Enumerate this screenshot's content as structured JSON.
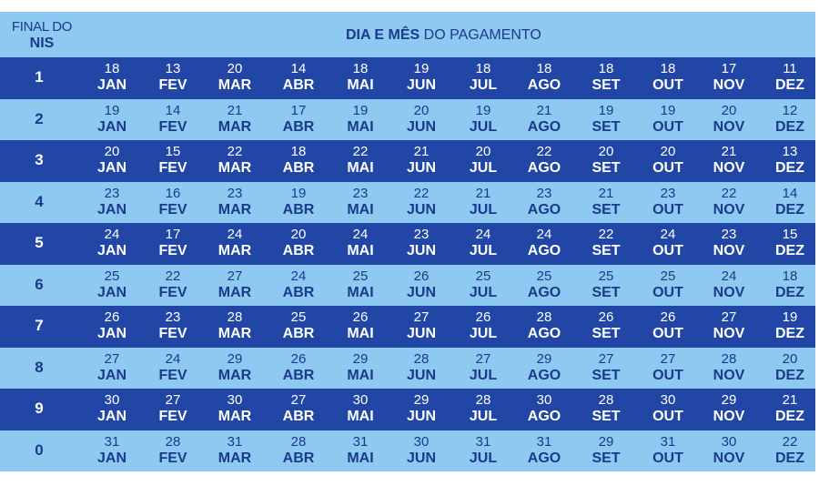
{
  "header": {
    "nis_line1": "FINAL DO",
    "nis_line2": "NIS",
    "title_bold": "DIA E MÊS",
    "title_rest": " DO PAGAMENTO"
  },
  "colors": {
    "dark_row": "#2146a5",
    "light_row": "#8dc9f1",
    "dark_text": "#1a3a8c",
    "light_text": "#ffffff"
  },
  "months": [
    "JAN",
    "FEV",
    "MAR",
    "ABR",
    "MAI",
    "JUN",
    "JUL",
    "AGO",
    "SET",
    "OUT",
    "NOV",
    "DEZ"
  ],
  "rows": [
    {
      "nis": "1",
      "days": [
        "18",
        "13",
        "20",
        "14",
        "18",
        "19",
        "18",
        "18",
        "18",
        "18",
        "17",
        "11"
      ]
    },
    {
      "nis": "2",
      "days": [
        "19",
        "14",
        "21",
        "17",
        "19",
        "20",
        "19",
        "21",
        "19",
        "19",
        "20",
        "12"
      ]
    },
    {
      "nis": "3",
      "days": [
        "20",
        "15",
        "22",
        "18",
        "22",
        "21",
        "20",
        "22",
        "20",
        "20",
        "21",
        "13"
      ]
    },
    {
      "nis": "4",
      "days": [
        "23",
        "16",
        "23",
        "19",
        "23",
        "22",
        "21",
        "23",
        "21",
        "23",
        "22",
        "14"
      ]
    },
    {
      "nis": "5",
      "days": [
        "24",
        "17",
        "24",
        "20",
        "24",
        "23",
        "24",
        "24",
        "22",
        "24",
        "23",
        "15"
      ]
    },
    {
      "nis": "6",
      "days": [
        "25",
        "22",
        "27",
        "24",
        "25",
        "26",
        "25",
        "25",
        "25",
        "25",
        "24",
        "18"
      ]
    },
    {
      "nis": "7",
      "days": [
        "26",
        "23",
        "28",
        "25",
        "26",
        "27",
        "26",
        "28",
        "26",
        "26",
        "27",
        "19"
      ]
    },
    {
      "nis": "8",
      "days": [
        "27",
        "24",
        "29",
        "26",
        "29",
        "28",
        "27",
        "29",
        "27",
        "27",
        "28",
        "20"
      ]
    },
    {
      "nis": "9",
      "days": [
        "30",
        "27",
        "30",
        "27",
        "30",
        "29",
        "28",
        "30",
        "28",
        "30",
        "29",
        "21"
      ]
    },
    {
      "nis": "0",
      "days": [
        "31",
        "28",
        "31",
        "28",
        "31",
        "30",
        "31",
        "31",
        "29",
        "31",
        "30",
        "22"
      ]
    }
  ]
}
